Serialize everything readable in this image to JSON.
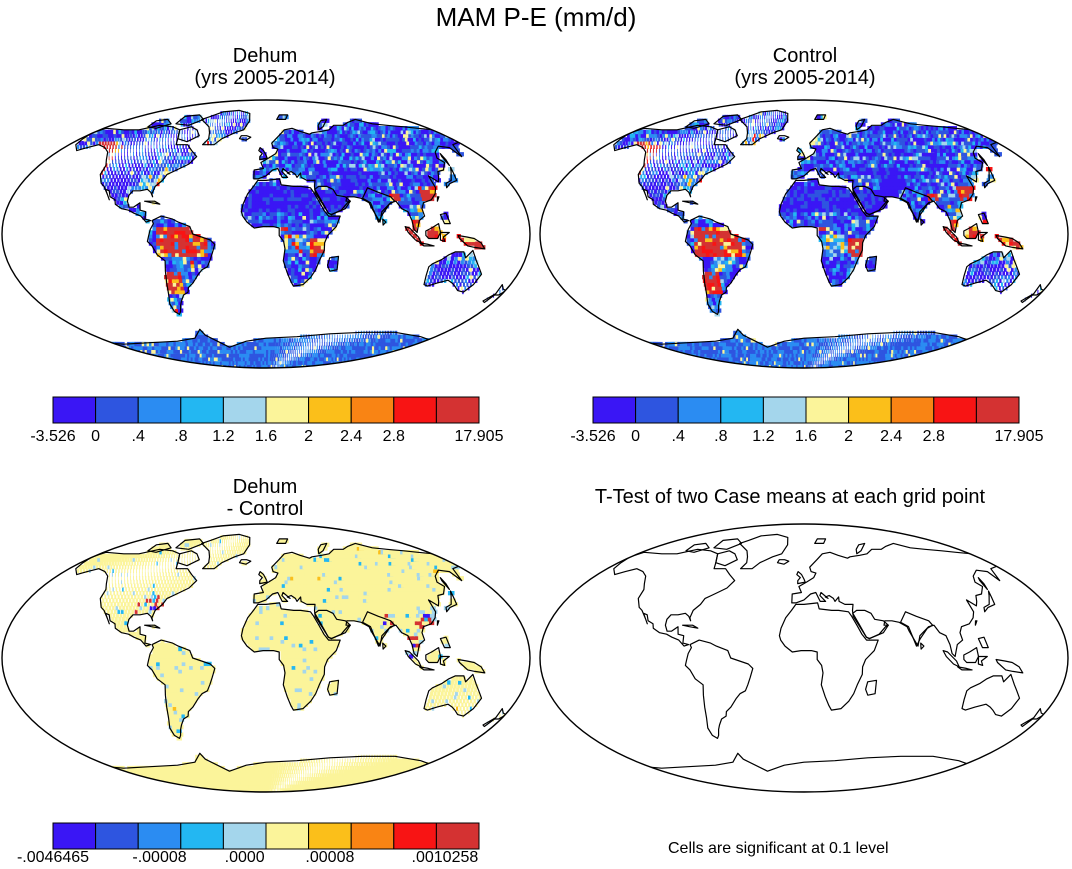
{
  "title": "MAM P-E (mm/d)",
  "panels": [
    {
      "id": "dehum",
      "title_line1": "Dehum",
      "title_line2": "(yrs 2005-2014)"
    },
    {
      "id": "control",
      "title_line1": "Control",
      "title_line2": "(yrs 2005-2014)"
    },
    {
      "id": "diff",
      "title_line1": "Dehum",
      "title_line2": "- Control"
    },
    {
      "id": "ttest",
      "title_line1": "T-Test of two Case means at each grid point",
      "title_line2": ""
    }
  ],
  "colors": {
    "palette": [
      "#3a16f5",
      "#2e55e0",
      "#2b8cf2",
      "#23b7f2",
      "#a4d6ec",
      "#fbf49a",
      "#fbbf1a",
      "#f98414",
      "#f81414",
      "#d43232"
    ],
    "ocean": "#ffffff",
    "coast": "#000000"
  },
  "colorbars": {
    "main": {
      "labels": [
        "-3.526",
        "0",
        ".4",
        ".8",
        "1.2",
        "1.6",
        "2",
        "2.4",
        "2.8",
        "17.905"
      ]
    },
    "diff": {
      "labels": [
        "-.0046465",
        "-.00008",
        ".0000",
        ".00008",
        ".0010258"
      ]
    }
  },
  "note": "Cells are significant at 0.1 level"
}
